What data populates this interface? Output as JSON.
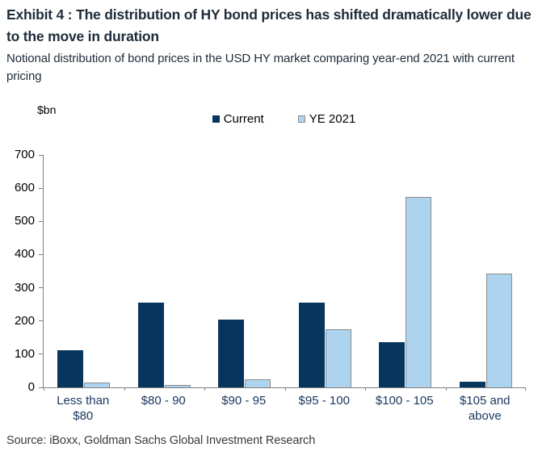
{
  "header": {
    "title": "Exhibit 4 : The distribution of HY bond prices has shifted dramatically lower due to the move in duration",
    "subtitle": "Notional distribution of bond prices in the USD HY market comparing year-end 2021 with current pricing"
  },
  "chart_data": {
    "type": "bar",
    "title": "",
    "unit_label": "$bn",
    "categories": [
      "Less than\n$80",
      "$80 - 90",
      "$90 - 95",
      "$95 - 100",
      "$100 - 105",
      "$105 and\nabove"
    ],
    "series": [
      {
        "name": "Current",
        "color": "#06365e",
        "values": [
          112,
          256,
          203,
          255,
          137,
          18
        ]
      },
      {
        "name": "YE 2021",
        "color": "#aed3ee",
        "border_color": "#8c8c8c",
        "values": [
          15,
          8,
          25,
          175,
          573,
          342
        ]
      }
    ],
    "ylim": [
      0,
      700
    ],
    "ytick_step": 100,
    "grid": false,
    "legend_position": "top-center",
    "axis_color": "#7f7f7f"
  },
  "footer": {
    "source": "Source: iBoxx, Goldman Sachs Global Investment Research"
  }
}
